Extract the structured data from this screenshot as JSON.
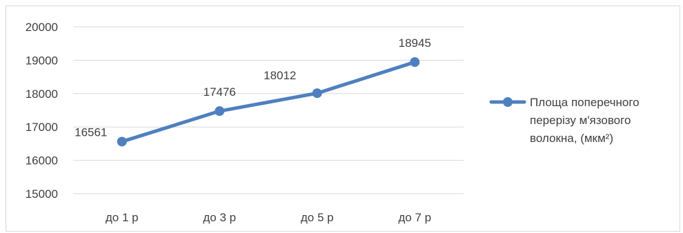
{
  "chart_data": {
    "type": "line",
    "title": "",
    "xlabel": "",
    "ylabel": "",
    "categories": [
      "до 1 р",
      "до 3 р",
      "до 5 р",
      "до 7 р"
    ],
    "series": [
      {
        "name": "Площа поперечного перерізу м'язового волокна, (мкм²)",
        "name_lines": [
          "Площа поперечного",
          "перерізу м'язового",
          "волокна, (мкм²)"
        ],
        "values": [
          16561,
          17476,
          18012,
          18945
        ],
        "data_labels": [
          "16561",
          "17476",
          "18012",
          "18945"
        ],
        "color": "#4f7fbf"
      }
    ],
    "ylim": [
      15000,
      20000
    ],
    "yticks": [
      15000,
      16000,
      17000,
      18000,
      19000,
      20000
    ],
    "ytick_labels": [
      "15000",
      "16000",
      "17000",
      "18000",
      "19000",
      "20000"
    ],
    "grid": true,
    "legend_position": "right",
    "gridline_color": "#d9d9d9"
  }
}
